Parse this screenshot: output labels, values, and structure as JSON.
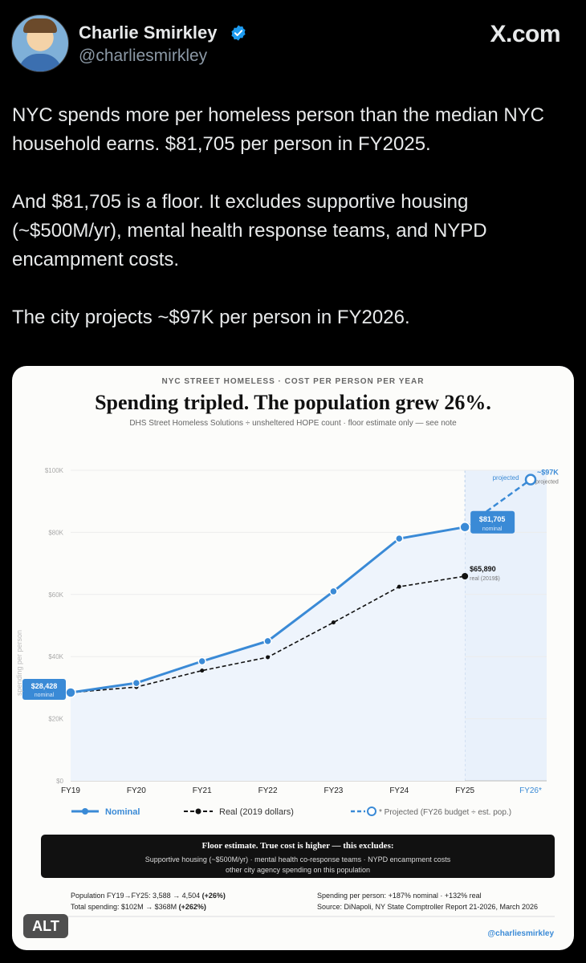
{
  "post": {
    "author_name": "Charlie Smirkley",
    "author_handle": "@charliesmirkley",
    "site_logo": "X.com",
    "paragraphs": [
      "NYC spends more per homeless person than the median NYC household earns. $81,705 per person in FY2025.",
      "And $81,705 is a floor. It excludes supportive housing (~$500M/yr), mental health response teams, and NYPD encampment costs.",
      "The city projects ~$97K per person in FY2026."
    ],
    "alt_badge": "ALT"
  },
  "chart_data": {
    "type": "line",
    "supertitle": "NYC STREET HOMELESS · COST PER PERSON PER YEAR",
    "title": "Spending tripled. The population grew 26%.",
    "subtitle": "DHS Street Homeless Solutions ÷ unsheltered HOPE count · floor estimate only — see note",
    "ylabel": "spending per person",
    "ylim": [
      0,
      100000
    ],
    "yticks": [
      "$0",
      "$20K",
      "$40K",
      "$60K",
      "$80K",
      "$100K"
    ],
    "categories": [
      "FY19",
      "FY20",
      "FY21",
      "FY22",
      "FY23",
      "FY24",
      "FY25",
      "FY26*"
    ],
    "projected_label": "projected",
    "series": [
      {
        "name": "Nominal",
        "values": [
          28428,
          31500,
          38500,
          45000,
          61000,
          78000,
          81705,
          null
        ]
      },
      {
        "name": "Real (2019 dollars)",
        "values": [
          28428,
          30200,
          35500,
          39800,
          51000,
          62500,
          65890,
          null
        ]
      },
      {
        "name": "* Projected (FY26 budget ÷ est. pop.)",
        "values": [
          null,
          null,
          null,
          null,
          null,
          null,
          81705,
          97000
        ]
      }
    ],
    "annotations": {
      "start_value": "$28,428",
      "start_sub": "nominal",
      "nominal_end_value": "$81,705",
      "nominal_end_sub": "nominal",
      "real_end_value": "$65,890",
      "real_end_sub": "real (2019$)",
      "proj_value": "~$97K",
      "proj_sub": "projected"
    },
    "note": {
      "title": "Floor estimate. True cost is higher — this excludes:",
      "line1": "Supportive housing (~$500M/yr) · mental health co-response teams · NYPD encampment costs",
      "line2": "other city agency spending on this population"
    },
    "footer": {
      "left1_pre": "Population FY19→FY25: 3,588 → 4,504 ",
      "left1_bold": "(+26%)",
      "left2_pre": "Total spending: $102M → $368M ",
      "left2_bold": "(+262%)",
      "right1": "Spending per person: +187% nominal · +132% real",
      "right2": "Source: DiNapoli, NY State Comptroller Report 21-2026, March 2026",
      "credit": "@charliesmirkley"
    },
    "colors": {
      "nominal": "#3a8ad6",
      "real": "#111111",
      "projected": "#3a8ad6",
      "band": "#e9f1fb",
      "fill": "#eef4fc"
    }
  }
}
